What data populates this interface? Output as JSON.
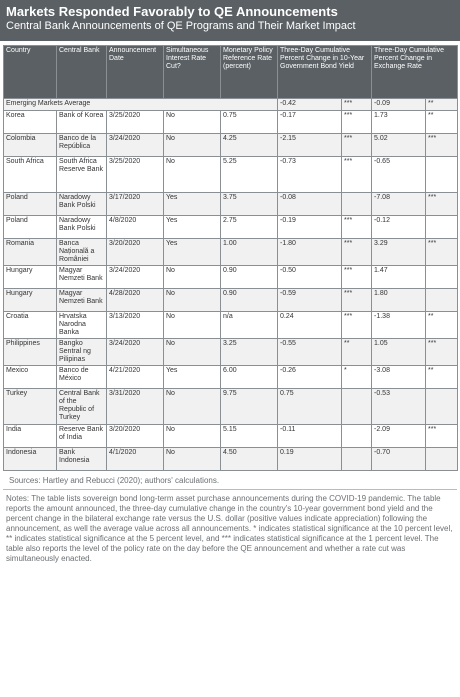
{
  "header": {
    "title": "Markets Responded Favorably to QE Announcements",
    "subtitle": "Central Bank Announcements of QE Programs and Their Market Impact"
  },
  "table": {
    "columns": [
      "Country",
      "Central Bank",
      "Announcement Date",
      "Simultaneous Interest Rate Cut?",
      "Monetary Policy Reference Rate (percent)",
      "Three-Day Cumulative Percent Change in 10-Year Government Bond Yield",
      "",
      "Three-Day Cumulative Percent Change in Exchange Rate",
      ""
    ],
    "average": {
      "label": "Emerging Markets Average",
      "bond": "-0.42",
      "bond_sig": "***",
      "fx": "-0.09",
      "fx_sig": "**"
    },
    "rows": [
      [
        "Korea",
        "Bank of Korea",
        "3/25/2020",
        "No",
        "0.75",
        "-0.17",
        "***",
        "1.73",
        "**"
      ],
      [
        "Colombia",
        "Banco de la República",
        "3/24/2020",
        "No",
        "4.25",
        "-2.15",
        "***",
        "5.02",
        "***"
      ],
      [
        "South Africa",
        "South Africa Reserve Bank",
        "3/25/2020",
        "No",
        "5.25",
        "-0.73",
        "***",
        "-0.65",
        ""
      ],
      [
        "Poland",
        "Naradowy Bank Polski",
        "3/17/2020",
        "Yes",
        "3.75",
        "-0.08",
        "",
        "-7.08",
        "***"
      ],
      [
        "Poland",
        "Naradowy Bank Polski",
        "4/8/2020",
        "Yes",
        "2.75",
        "-0.19",
        "***",
        "-0.12",
        ""
      ],
      [
        "Romania",
        "Banca Națională a României",
        "3/20/2020",
        "Yes",
        "1.00",
        "-1.80",
        "***",
        "3.29",
        "***"
      ],
      [
        "Hungary",
        "Magyar Nemzeti Bank",
        "3/24/2020",
        "No",
        "0.90",
        "-0.50",
        "***",
        "1.47",
        ""
      ],
      [
        "Hungary",
        "Magyar Nemzeti Bank",
        "4/28/2020",
        "No",
        "0.90",
        "-0.59",
        "***",
        "1.80",
        ""
      ],
      [
        "Croatia",
        "Hrvatska Narodna Banka",
        "3/13/2020",
        "No",
        "n/a",
        "0.24",
        "***",
        "-1.38",
        "**"
      ],
      [
        "Philippines",
        "Bangko Sentral ng Pilipinas",
        "3/24/2020",
        "No",
        "3.25",
        "-0.55",
        "**",
        "1.05",
        "***"
      ],
      [
        "Mexico",
        "Banco de México",
        "4/21/2020",
        "Yes",
        "6.00",
        "-0.26",
        "*",
        "-3.08",
        "**"
      ],
      [
        "Turkey",
        "Central Bank of the Republic of Turkey",
        "3/31/2020",
        "No",
        "9.75",
        "0.75",
        "",
        "-0.53",
        ""
      ],
      [
        "India",
        "Reserve Bank of India",
        "3/20/2020",
        "No",
        "5.15",
        "-0.11",
        "",
        "-2.09",
        "***"
      ],
      [
        "Indonesia",
        "Bank Indonesia",
        "4/1/2020",
        "No",
        "4.50",
        "0.19",
        "",
        "-0.70",
        ""
      ]
    ]
  },
  "footer": {
    "sources": "Sources: Hartley and Rebucci (2020); authors' calculations.",
    "notes": "Notes: The table lists sovereign bond long-term asset purchase announcements during the COVID-19 pandemic. The table reports the amount announced, the three-day cumulative change in the country's 10-year government bond yield and the percent change in the bilateral exchange rate versus the U.S. dollar (positive values indicate appreciation) following the announcement, as well the average value across all announcements. * indicates statistical significance at the 10 percent level, ** indicates statistical significance at the 5 percent level, and *** indicates statistical significance at the 1 percent level. The table also reports the level of the policy rate on the day before the QE announcement and whether a rate cut was simultaneously enacted."
  }
}
